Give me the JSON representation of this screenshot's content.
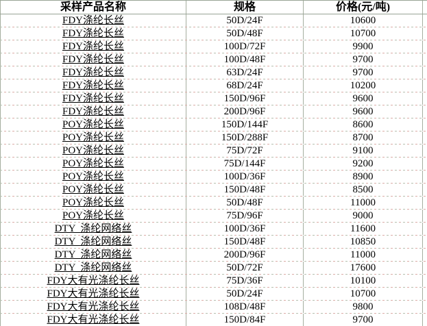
{
  "table": {
    "columns": [
      {
        "label": "采样产品名称"
      },
      {
        "label": "规格"
      },
      {
        "label": "价格(元/吨)"
      }
    ],
    "rows": [
      {
        "name": "FDY涤纶长丝",
        "spec": "50D/24F",
        "price": "10600"
      },
      {
        "name": "FDY涤纶长丝",
        "spec": "50D/48F",
        "price": "10700"
      },
      {
        "name": "FDY涤纶长丝",
        "spec": "100D/72F",
        "price": "9900"
      },
      {
        "name": "FDY涤纶长丝",
        "spec": "100D/48F",
        "price": "9700"
      },
      {
        "name": "FDY涤纶长丝",
        "spec": "63D/24F",
        "price": "9700"
      },
      {
        "name": "FDY涤纶长丝",
        "spec": "68D/24F",
        "price": "10200"
      },
      {
        "name": "FDY涤纶长丝",
        "spec": "150D/96F",
        "price": "9600"
      },
      {
        "name": "FDY涤纶长丝",
        "spec": "200D/96F",
        "price": "9600"
      },
      {
        "name": "POY涤纶长丝",
        "spec": "150D/144F",
        "price": "8600"
      },
      {
        "name": "POY涤纶长丝",
        "spec": "150D/288F",
        "price": "8700"
      },
      {
        "name": "POY涤纶长丝",
        "spec": "75D/72F",
        "price": "9100"
      },
      {
        "name": "POY涤纶长丝",
        "spec": "75D/144F",
        "price": "9200"
      },
      {
        "name": "POY涤纶长丝",
        "spec": "100D/36F",
        "price": "8900"
      },
      {
        "name": "POY涤纶长丝",
        "spec": "150D/48F",
        "price": "8500"
      },
      {
        "name": "POY涤纶长丝",
        "spec": "50D/48F",
        "price": "11000"
      },
      {
        "name": "POY涤纶长丝",
        "spec": "75D/96F",
        "price": "9000"
      },
      {
        "name": "DTY  涤纶网络丝",
        "spec": "100D/36F",
        "price": "11600"
      },
      {
        "name": "DTY  涤纶网络丝",
        "spec": "150D/48F",
        "price": "10850"
      },
      {
        "name": "DTY  涤纶网络丝",
        "spec": "200D/96F",
        "price": "11000"
      },
      {
        "name": "DTY  涤纶网络丝",
        "spec": "50D/72F",
        "price": "17600"
      },
      {
        "name": "FDY大有光涤纶长丝",
        "spec": "75D/36F",
        "price": "10100"
      },
      {
        "name": "FDY大有光涤纶长丝",
        "spec": "50D/24F",
        "price": "10700"
      },
      {
        "name": "FDY大有光涤纶长丝",
        "spec": "108D/48F",
        "price": "9800"
      },
      {
        "name": "FDY大有光涤纶长丝",
        "spec": "150D/84F",
        "price": "9700"
      }
    ]
  },
  "colors": {
    "border_solid": "#98a394",
    "border_vertical": "#a5ae9f",
    "separator_green": "#b4bfae",
    "separator_pink": "#dcaba6",
    "text": "#000000",
    "background": "#ffffff"
  }
}
